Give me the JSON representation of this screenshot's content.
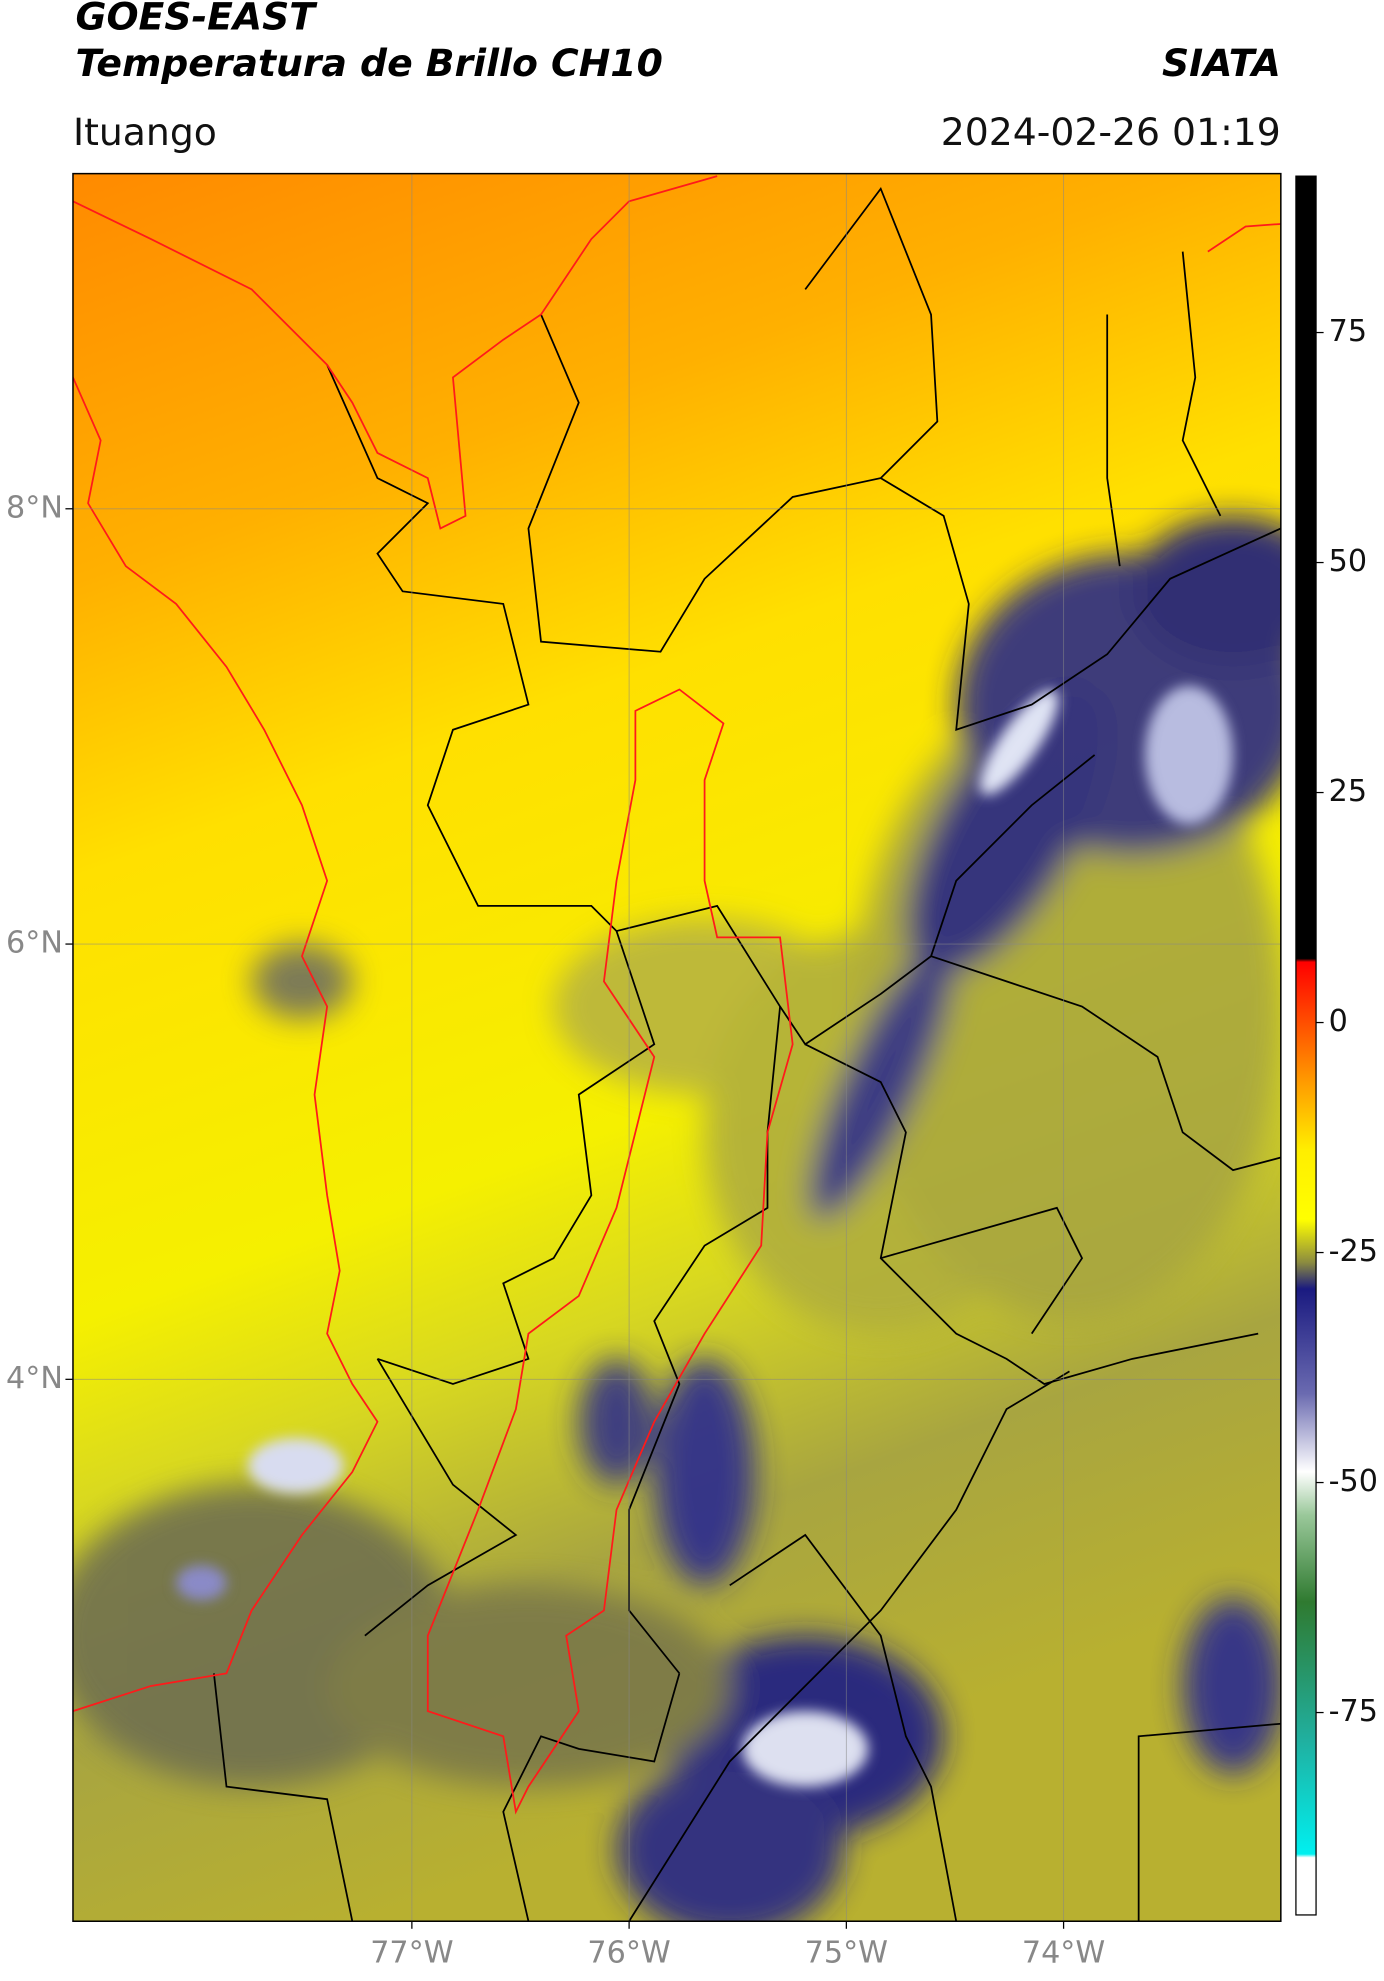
{
  "header": {
    "title": "GOES-EAST",
    "subtitle": "Temperatura de Brillo CH10",
    "agency": "SIATA",
    "location": "Ituango",
    "timestamp": "2024-02-26 01:19"
  },
  "map": {
    "xlim": [
      -78.56,
      -73.0
    ],
    "ylim": [
      1.51,
      9.54
    ],
    "xticks": [
      {
        "value": -77,
        "label": "77°W"
      },
      {
        "value": -76,
        "label": "76°W"
      },
      {
        "value": -75,
        "label": "75°W"
      },
      {
        "value": -74,
        "label": "74°W"
      }
    ],
    "yticks": [
      {
        "value": 8,
        "label": "8°N"
      },
      {
        "value": 6,
        "label": "6°N"
      },
      {
        "value": 4,
        "label": "4°N"
      }
    ],
    "grid": true
  },
  "colorbar": {
    "lim": [
      -97,
      92
    ],
    "ticks": [
      75,
      50,
      25,
      0,
      -25,
      -50,
      -75
    ]
  }
}
